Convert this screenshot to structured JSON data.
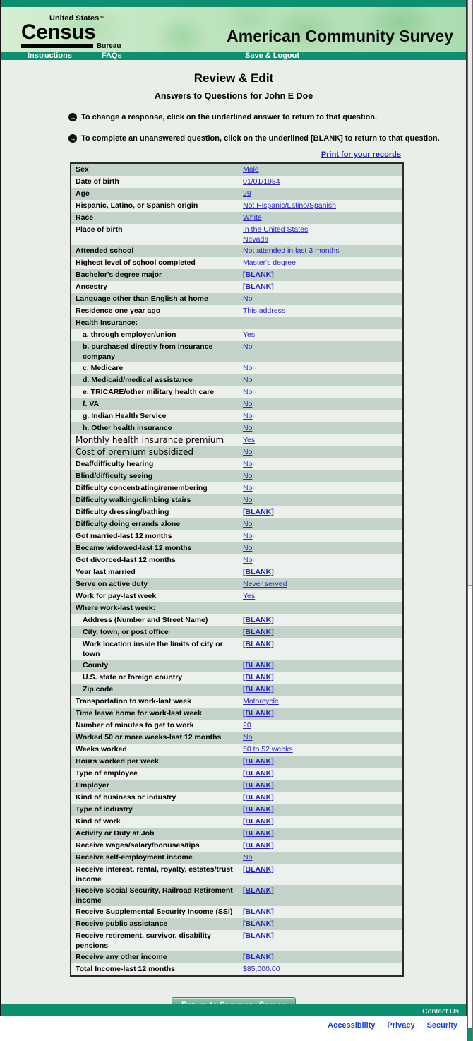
{
  "header": {
    "logo": {
      "top": "United States",
      "tm": "™",
      "main": "Census",
      "bottom": "Bureau"
    },
    "title": "American Community Survey",
    "nav": [
      {
        "label": "Instructions"
      },
      {
        "label": "FAQs"
      },
      {
        "label": "Save & Logout"
      }
    ]
  },
  "page": {
    "title": "Review & Edit",
    "subtitle": "Answers to Questions for John E Doe",
    "instructions": [
      {
        "text": "To change a response, click on the underlined answer to return to that question."
      },
      {
        "text": "To complete an unanswered question, click on the underlined [BLANK] to return to that question."
      }
    ],
    "print_link": "Print for your records",
    "return_button": "Return to Summary Screen"
  },
  "table": {
    "rows": [
      {
        "label": "Sex",
        "answers": [
          "Male"
        ],
        "shade": "green"
      },
      {
        "label": "Date of birth",
        "answers": [
          "01/01/1984"
        ],
        "shade": "light"
      },
      {
        "label": "Age",
        "answers": [
          "29"
        ],
        "shade": "green"
      },
      {
        "label": "Hispanic, Latino, or Spanish origin",
        "answers": [
          "Not Hispanic/Latino/Spanish"
        ],
        "shade": "light"
      },
      {
        "label": "Race",
        "answers": [
          "White"
        ],
        "shade": "green"
      },
      {
        "label": "Place of birth",
        "answers": [
          "In the United States",
          "Nevada"
        ],
        "shade": "light"
      },
      {
        "label": "Attended school",
        "answers": [
          "Not attended in last 3 months"
        ],
        "shade": "green"
      },
      {
        "label": "Highest level of school completed",
        "answers": [
          "Master's degree"
        ],
        "shade": "light"
      },
      {
        "label": "Bachelor's degree major",
        "answers": [
          "[BLANK]"
        ],
        "shade": "green"
      },
      {
        "label": "Ancestry",
        "answers": [
          "[BLANK]"
        ],
        "shade": "light"
      },
      {
        "label": "Language other than English at home",
        "answers": [
          "No"
        ],
        "shade": "green"
      },
      {
        "label": "Residence one year ago",
        "answers": [
          "This address"
        ],
        "shade": "light"
      },
      {
        "label": "Health Insurance:",
        "answers": [],
        "shade": "green"
      },
      {
        "label": "a. through employer/union",
        "answers": [
          "Yes"
        ],
        "shade": "light",
        "indent": true
      },
      {
        "label": "b. purchased directly from insurance company",
        "answers": [
          "No"
        ],
        "shade": "green",
        "indent": true
      },
      {
        "label": "c. Medicare",
        "answers": [
          "No"
        ],
        "shade": "light",
        "indent": true
      },
      {
        "label": "d. Medicaid/medical assistance",
        "answers": [
          "No"
        ],
        "shade": "green",
        "indent": true
      },
      {
        "label": "e. TRICARE/other military health care",
        "answers": [
          "No"
        ],
        "shade": "light",
        "indent": true
      },
      {
        "label": "f. VA",
        "answers": [
          "No"
        ],
        "shade": "green",
        "indent": true
      },
      {
        "label": "g. Indian Health Service",
        "answers": [
          "No"
        ],
        "shade": "light",
        "indent": true
      },
      {
        "label": "h. Other health insurance",
        "answers": [
          "No"
        ],
        "shade": "green",
        "indent": true
      },
      {
        "label": "Monthly health insurance premium",
        "answers": [
          "Yes"
        ],
        "shade": "light",
        "alt_font": true
      },
      {
        "label": "Cost of premium subsidized",
        "answers": [
          "No"
        ],
        "shade": "green",
        "alt_font": true
      },
      {
        "label": "Deaf/difficulty hearing",
        "answers": [
          "No"
        ],
        "shade": "light"
      },
      {
        "label": "Blind/difficulty seeing",
        "answers": [
          "No"
        ],
        "shade": "green"
      },
      {
        "label": "Difficulty concentrating/remembering",
        "answers": [
          "No"
        ],
        "shade": "light"
      },
      {
        "label": "Difficulty walking/climbing stairs",
        "answers": [
          "No"
        ],
        "shade": "green"
      },
      {
        "label": "Difficulty dressing/bathing",
        "answers": [
          "[BLANK]"
        ],
        "shade": "light"
      },
      {
        "label": "Difficulty doing errands alone",
        "answers": [
          "No"
        ],
        "shade": "green"
      },
      {
        "label": "Got married-last 12 months",
        "answers": [
          "No"
        ],
        "shade": "light"
      },
      {
        "label": "Became widowed-last 12 months",
        "answers": [
          "No"
        ],
        "shade": "green"
      },
      {
        "label": "Got divorced-last 12 months",
        "answers": [
          "No"
        ],
        "shade": "light"
      },
      {
        "label": "Year last married",
        "answers": [
          "[BLANK]"
        ],
        "shade": "light"
      },
      {
        "label": "Serve on active duty",
        "answers": [
          "Never served"
        ],
        "shade": "green"
      },
      {
        "label": "Work for pay-last week",
        "answers": [
          "Yes"
        ],
        "shade": "light"
      },
      {
        "label": "Where work-last week:",
        "answers": [],
        "shade": "green"
      },
      {
        "label": "Address (Number and Street Name)",
        "answers": [
          "[BLANK]"
        ],
        "shade": "light",
        "indent": true
      },
      {
        "label": "City, town, or post office",
        "answers": [
          "[BLANK]"
        ],
        "shade": "green",
        "indent": true
      },
      {
        "label": "Work location inside the limits of city or town",
        "answers": [
          "[BLANK]"
        ],
        "shade": "light",
        "indent": true
      },
      {
        "label": "County",
        "answers": [
          "[BLANK]"
        ],
        "shade": "green",
        "indent": true
      },
      {
        "label": "U.S. state or foreign country",
        "answers": [
          "[BLANK]"
        ],
        "shade": "light",
        "indent": true
      },
      {
        "label": "Zip code",
        "answers": [
          "[BLANK]"
        ],
        "shade": "green",
        "indent": true
      },
      {
        "label": "Transportation to work-last week",
        "answers": [
          "Motorcycle"
        ],
        "shade": "light"
      },
      {
        "label": "Time leave home for work-last week",
        "answers": [
          "[BLANK]"
        ],
        "shade": "green"
      },
      {
        "label": "Number of minutes to get to work",
        "answers": [
          "20"
        ],
        "shade": "light"
      },
      {
        "label": "Worked 50 or more weeks-last 12 months",
        "answers": [
          "No"
        ],
        "shade": "green"
      },
      {
        "label": "Weeks worked",
        "answers": [
          "50 to 52 weeks"
        ],
        "shade": "light"
      },
      {
        "label": "Hours worked per week",
        "answers": [
          "[BLANK]"
        ],
        "shade": "green"
      },
      {
        "label": "Type of employee",
        "answers": [
          "[BLANK]"
        ],
        "shade": "light"
      },
      {
        "label": "Employer",
        "answers": [
          "[BLANK]"
        ],
        "shade": "green"
      },
      {
        "label": "Kind of business or industry",
        "answers": [
          "[BLANK]"
        ],
        "shade": "light"
      },
      {
        "label": "Type of industry",
        "answers": [
          "[BLANK]"
        ],
        "shade": "green"
      },
      {
        "label": "Kind of work",
        "answers": [
          "[BLANK]"
        ],
        "shade": "light"
      },
      {
        "label": "Activity or Duty at Job",
        "answers": [
          "[BLANK]"
        ],
        "shade": "green"
      },
      {
        "label": "Receive wages/salary/bonuses/tips",
        "answers": [
          "[BLANK]"
        ],
        "shade": "light"
      },
      {
        "label": "Receive self-employment income",
        "answers": [
          "No"
        ],
        "shade": "green"
      },
      {
        "label": "Receive interest, rental, royalty, estates/trust income",
        "answers": [
          "[BLANK]"
        ],
        "shade": "light"
      },
      {
        "label": "Receive Social Security, Railroad Retirement income",
        "answers": [
          "[BLANK]"
        ],
        "shade": "green"
      },
      {
        "label": "Receive Supplemental Security Income (SSI)",
        "answers": [
          "[BLANK]"
        ],
        "shade": "light"
      },
      {
        "label": "Receive public assistance",
        "answers": [
          "[BLANK]"
        ],
        "shade": "green"
      },
      {
        "label": "Receive retirement, survivor, disability pensions",
        "answers": [
          "[BLANK]"
        ],
        "shade": "light"
      },
      {
        "label": "Receive any other income",
        "answers": [
          "[BLANK]"
        ],
        "shade": "green"
      },
      {
        "label": "Total Income-last 12 months",
        "answers": [
          "$85,000.00"
        ],
        "shade": "light"
      }
    ]
  },
  "footer": {
    "contact_link": "Contact Us",
    "links": [
      {
        "label": "Accessibility"
      },
      {
        "label": "Privacy"
      },
      {
        "label": "Security"
      }
    ]
  },
  "colors": {
    "teal": "#0e9070",
    "banner_green": "#bfe4bf",
    "row_green": "#c3d3c9",
    "row_light": "#edf1ee",
    "link_blue": "#2626cc",
    "footer_link_blue": "#1c3fe0",
    "button_green": "#6fab91"
  }
}
